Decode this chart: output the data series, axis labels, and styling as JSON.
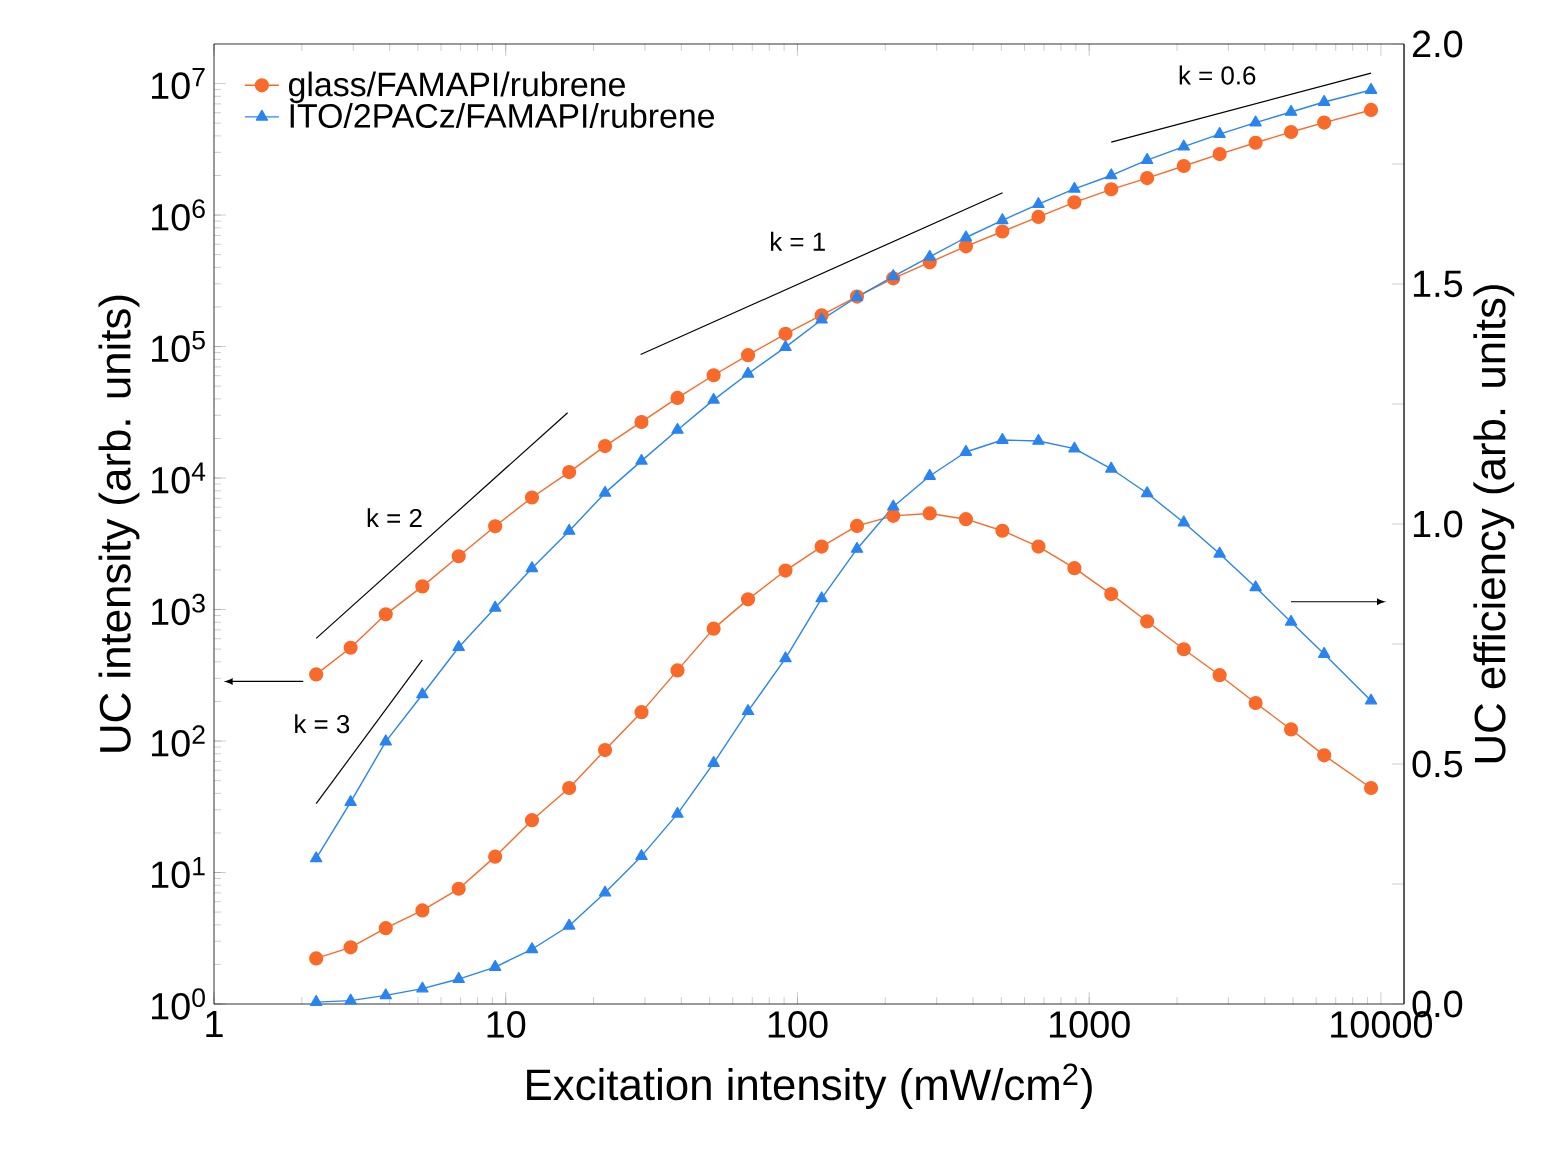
{
  "chart_data": {
    "type": "line",
    "xlabel": "Excitation intensity (mW/cm$^{2}$)",
    "ylabel": "UC intensity (arb. units)",
    "y2label": "UC efficiency (arb. units)",
    "log": "xy",
    "legend": "top left",
    "grid": false,
    "xlim": [
      1,
      12000
    ],
    "xticks": [
      1,
      10,
      100,
      1000,
      10000
    ],
    "ylim": [
      1,
      20000000
    ],
    "yticks": [
      {
        "value": 1,
        "label": "10$^{0}$"
      },
      {
        "value": 10,
        "label": "10$^{1}$"
      },
      {
        "value": 100,
        "label": "10$^{2}$"
      },
      {
        "value": 1000,
        "label": "10$^{3}$"
      },
      {
        "value": 10000,
        "label": "10$^{4}$"
      },
      {
        "value": 100000,
        "label": "10$^{5}$"
      },
      {
        "value": 1000000,
        "label": "10$^{6}$"
      },
      {
        "value": 10000000,
        "label": "10$^{7}$"
      }
    ],
    "y2lim": [
      0,
      2
    ],
    "y2ticks": [
      {
        "value": 0,
        "label": "0.0"
      },
      {
        "value": 0.25,
        "label": null
      },
      {
        "value": 0.5,
        "label": "0.5"
      },
      {
        "value": 0.75,
        "label": null
      },
      {
        "value": 1,
        "label": "1.0"
      },
      {
        "value": 1.25,
        "label": null
      },
      {
        "value": 1.5,
        "label": "1.5"
      },
      {
        "value": 1.75,
        "label": null
      },
      {
        "value": 2,
        "label": "2.0"
      }
    ],
    "x": [
      2.24,
      2.94,
      3.88,
      5.18,
      6.9,
      9.2,
      12.3,
      16.5,
      21.9,
      29.2,
      38.8,
      51.6,
      67.7,
      91,
      121,
      160,
      213,
      284,
      378,
      504,
      670,
      890,
      1190,
      1580,
      2110,
      2800,
      3720,
      4920,
      6390,
      9250
    ],
    "series": [
      {
        "name": "glass/FAMAPI/rubrene",
        "color": "#f96a2a",
        "marker": "circle",
        "axis": "y",
        "values": [
          321,
          512,
          919,
          1500,
          2540,
          4300,
          7110,
          11100,
          17500,
          26700,
          40700,
          60500,
          86000,
          125000,
          173000,
          240000,
          330000,
          437000,
          578000,
          750000,
          968000,
          1250000,
          1570000,
          1910000,
          2360000,
          2910000,
          3550000,
          4280000,
          5050000,
          6300000
        ]
      },
      {
        "name": "ITO/2PACz/FAMAPI/rubrene",
        "color": "#2a84f0",
        "marker": "triangle",
        "axis": "y",
        "values": [
          12.8,
          34.3,
          99,
          226,
          517,
          1030,
          2060,
          3960,
          7710,
          13500,
          23200,
          39300,
          62100,
          98900,
          160000,
          238000,
          342000,
          481000,
          675000,
          912000,
          1210000,
          1580000,
          2000000,
          2620000,
          3310000,
          4130000,
          5050000,
          6080000,
          7240000,
          8930000
        ]
      },
      {
        "color": "#f96a2a",
        "marker": "circle",
        "axis": "y2",
        "values": [
          0.095,
          0.118,
          0.158,
          0.195,
          0.24,
          0.307,
          0.383,
          0.45,
          0.529,
          0.608,
          0.695,
          0.782,
          0.843,
          0.903,
          0.953,
          0.996,
          1.017,
          1.022,
          1.01,
          0.986,
          0.953,
          0.908,
          0.854,
          0.797,
          0.739,
          0.685,
          0.627,
          0.572,
          0.518,
          0.45
        ]
      },
      {
        "color": "#2a84f0",
        "marker": "triangle",
        "axis": "y2",
        "values": [
          0.004,
          0.007,
          0.018,
          0.032,
          0.052,
          0.077,
          0.114,
          0.163,
          0.232,
          0.308,
          0.396,
          0.502,
          0.61,
          0.72,
          0.845,
          0.948,
          1.036,
          1.1,
          1.15,
          1.175,
          1.173,
          1.157,
          1.115,
          1.064,
          1.003,
          0.938,
          0.868,
          0.796,
          0.729,
          0.632
        ]
      },
      {
        "color": "#000000",
        "marker": "none",
        "axis": "y",
        "x": [
          2.24,
          5.18
        ],
        "values": [
          33.4,
          414
        ]
      },
      {
        "color": "#000000",
        "marker": "none",
        "axis": "y",
        "x": [
          2.24,
          16.3
        ],
        "values": [
          603,
          31400
        ]
      },
      {
        "color": "#000000",
        "marker": "none",
        "axis": "y",
        "x": [
          29,
          505
        ],
        "values": [
          86900,
          1480000
        ]
      },
      {
        "color": "#000000",
        "marker": "none",
        "axis": "y",
        "x": [
          1190,
          9250
        ],
        "values": [
          3590000,
          12000000
        ]
      }
    ],
    "annotations": [
      "k = 3",
      "k = 2",
      "k = 1",
      "k = 0.6"
    ]
  }
}
